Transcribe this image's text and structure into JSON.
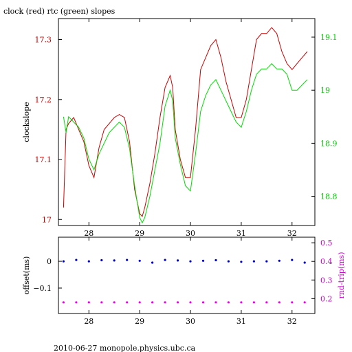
{
  "title": "clock (red) rtc (green) slopes",
  "footer": "2010-06-27  monopole.physics.ubc.ca",
  "colors": {
    "clock": "#cc0000",
    "rtc": "#00dd00",
    "offset": "#0000cc",
    "rndtrip": "#ee00ee",
    "frame": "#000000"
  },
  "chart_data": [
    {
      "type": "line",
      "ylabel": "clockslope",
      "y2label": "",
      "xlim": [
        27.4,
        32.45
      ],
      "ylim": [
        16.99,
        17.335
      ],
      "y2lim": [
        18.745,
        19.135
      ],
      "xticks": [
        28,
        29,
        30,
        31,
        32
      ],
      "xtick_labels": [
        "28",
        "29",
        "30",
        "31",
        "32"
      ],
      "yticks": [
        17,
        17.1,
        17.2,
        17.3
      ],
      "ytick_labels": [
        "17",
        "17.1",
        "17.2",
        "17.3"
      ],
      "y2ticks": [
        18.8,
        18.9,
        19,
        19.1
      ],
      "y2tick_labels": [
        "18.8",
        "18.9",
        "19",
        "19.1"
      ],
      "series": [
        {
          "axis": "left",
          "x": [
            27.5,
            27.55,
            27.6,
            27.7,
            27.8,
            27.9,
            28.0,
            28.1,
            28.2,
            28.3,
            28.4,
            28.5,
            28.6,
            28.7,
            28.8,
            28.9,
            29.0,
            29.05,
            29.1,
            29.2,
            29.3,
            29.4,
            29.5,
            29.6,
            29.65,
            29.7,
            29.8,
            29.9,
            30.0,
            30.1,
            30.2,
            30.3,
            30.4,
            30.5,
            30.6,
            30.7,
            30.8,
            30.9,
            31.0,
            31.1,
            31.2,
            31.3,
            31.4,
            31.5,
            31.6,
            31.7,
            31.8,
            31.9,
            32.0,
            32.1,
            32.2,
            32.3
          ],
          "y": [
            17.02,
            17.15,
            17.16,
            17.17,
            17.15,
            17.13,
            17.09,
            17.07,
            17.12,
            17.15,
            17.16,
            17.17,
            17.175,
            17.17,
            17.13,
            17.05,
            17.01,
            17.005,
            17.02,
            17.06,
            17.11,
            17.17,
            17.22,
            17.24,
            17.22,
            17.15,
            17.1,
            17.07,
            17.07,
            17.15,
            17.25,
            17.27,
            17.29,
            17.3,
            17.27,
            17.23,
            17.2,
            17.17,
            17.17,
            17.2,
            17.25,
            17.3,
            17.31,
            17.31,
            17.32,
            17.31,
            17.28,
            17.26,
            17.25,
            17.26,
            17.27,
            17.28
          ]
        },
        {
          "axis": "right",
          "x": [
            27.5,
            27.55,
            27.6,
            27.7,
            27.8,
            27.9,
            28.0,
            28.1,
            28.2,
            28.3,
            28.4,
            28.5,
            28.6,
            28.7,
            28.8,
            28.9,
            29.0,
            29.05,
            29.1,
            29.2,
            29.3,
            29.4,
            29.5,
            29.6,
            29.65,
            29.7,
            29.8,
            29.9,
            30.0,
            30.1,
            30.2,
            30.3,
            30.4,
            30.5,
            30.6,
            30.7,
            30.8,
            30.9,
            31.0,
            31.1,
            31.2,
            31.3,
            31.4,
            31.5,
            31.6,
            31.7,
            31.8,
            31.9,
            32.0,
            32.1,
            32.2,
            32.3
          ],
          "y": [
            18.95,
            18.92,
            18.95,
            18.94,
            18.93,
            18.91,
            18.87,
            18.85,
            18.88,
            18.9,
            18.92,
            18.93,
            18.94,
            18.93,
            18.89,
            18.82,
            18.76,
            18.75,
            18.76,
            18.8,
            18.85,
            18.9,
            18.97,
            19.0,
            18.98,
            18.91,
            18.86,
            18.82,
            18.81,
            18.88,
            18.96,
            18.99,
            19.01,
            19.02,
            19.0,
            18.98,
            18.96,
            18.94,
            18.93,
            18.96,
            19.0,
            19.03,
            19.04,
            19.04,
            19.05,
            19.04,
            19.04,
            19.03,
            19.0,
            19.0,
            19.01,
            19.02
          ]
        }
      ]
    },
    {
      "type": "scatter",
      "ylabel": "offset(ms)",
      "y2label": "rnd-trip(ms)",
      "xlim": [
        27.4,
        32.45
      ],
      "ylim": [
        -0.195,
        0.09
      ],
      "y2lim": [
        0.12,
        0.53
      ],
      "xticks": [
        28,
        29,
        30,
        31,
        32
      ],
      "xtick_labels": [
        "28",
        "29",
        "30",
        "31",
        "32"
      ],
      "yticks": [
        -0.1,
        0
      ],
      "ytick_labels": [
        "−0.1",
        "0"
      ],
      "y2ticks": [
        0.2,
        0.3,
        0.4,
        0.5
      ],
      "y2tick_labels": [
        "0.2",
        "0.3",
        "0.4",
        "0.5"
      ],
      "series": [
        {
          "axis": "left",
          "x": [
            27.5,
            27.75,
            28.0,
            28.25,
            28.5,
            28.75,
            29.0,
            29.25,
            29.5,
            29.75,
            30.0,
            30.25,
            30.5,
            30.75,
            31.0,
            31.25,
            31.5,
            31.75,
            32.0,
            32.25
          ],
          "y": [
            0.0,
            0.005,
            0.0,
            0.004,
            0.003,
            0.005,
            0.002,
            -0.005,
            0.005,
            0.003,
            0.0,
            0.002,
            0.004,
            0.0,
            -0.002,
            0.0,
            0.0,
            0.002,
            0.005,
            -0.005
          ]
        },
        {
          "axis": "right",
          "x": [
            27.5,
            27.75,
            28.0,
            28.25,
            28.5,
            28.75,
            29.0,
            29.25,
            29.5,
            29.75,
            30.0,
            30.25,
            30.5,
            30.75,
            31.0,
            31.25,
            31.5,
            31.75,
            32.0,
            32.25
          ],
          "y": [
            0.18,
            0.18,
            0.18,
            0.18,
            0.18,
            0.18,
            0.18,
            0.18,
            0.18,
            0.18,
            0.18,
            0.18,
            0.18,
            0.18,
            0.18,
            0.18,
            0.18,
            0.18,
            0.18,
            0.18
          ]
        }
      ]
    }
  ]
}
